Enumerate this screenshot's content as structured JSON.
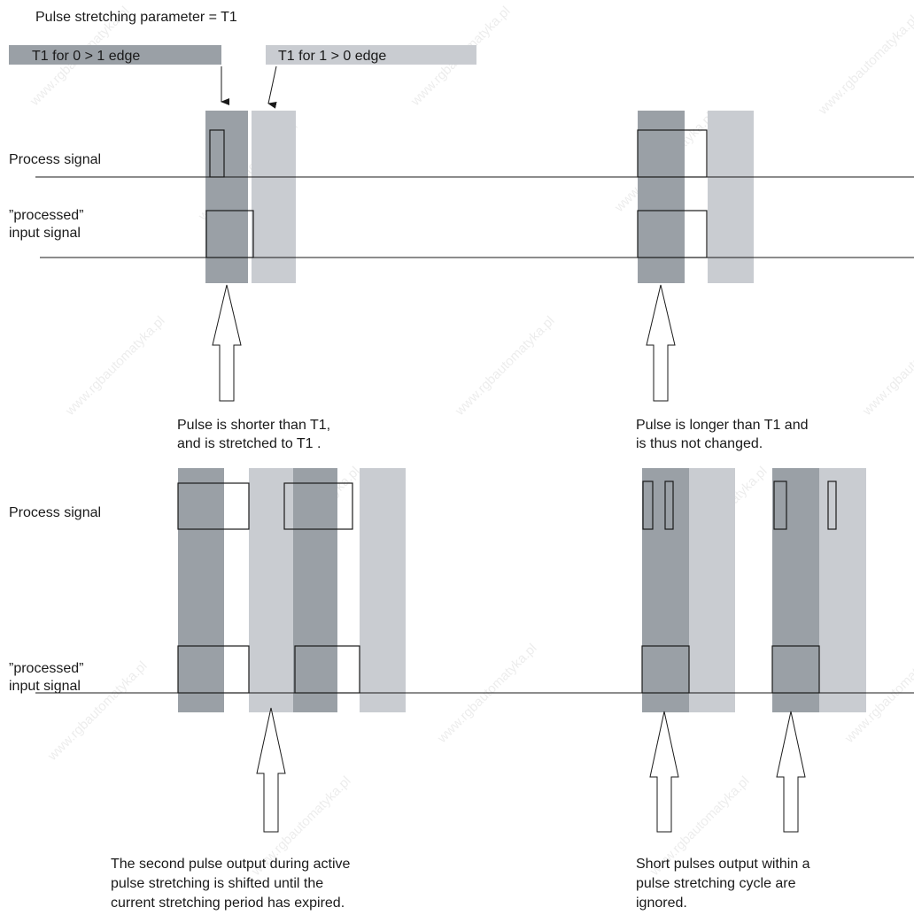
{
  "title": "Pulse stretching parameter = T1",
  "legend": {
    "rising_label": "T1 for 0 > 1 edge",
    "falling_label": "T1 for 1 > 0 edge"
  },
  "signal_labels": {
    "process": "Process signal",
    "processed_line1": "”processed”",
    "processed_line2": "input signal"
  },
  "captions": {
    "short_pulse": [
      "Pulse is shorter than T1,",
      "and is stretched to T1 ."
    ],
    "long_pulse": [
      "Pulse is longer than T1 and",
      "is thus not changed."
    ],
    "shifted_pulse": [
      "The second pulse output during active",
      "pulse stretching is shifted until the",
      "current stretching period has expired."
    ],
    "ignored_pulses": [
      "Short pulses output within a",
      "pulse stretching cycle are",
      "ignored."
    ]
  },
  "watermark": "www.rgbautomatyka.pl",
  "colors": {
    "rising_band": "#9aa0a6",
    "falling_band": "#c9ccd1",
    "stroke": "#1a1a1a"
  }
}
